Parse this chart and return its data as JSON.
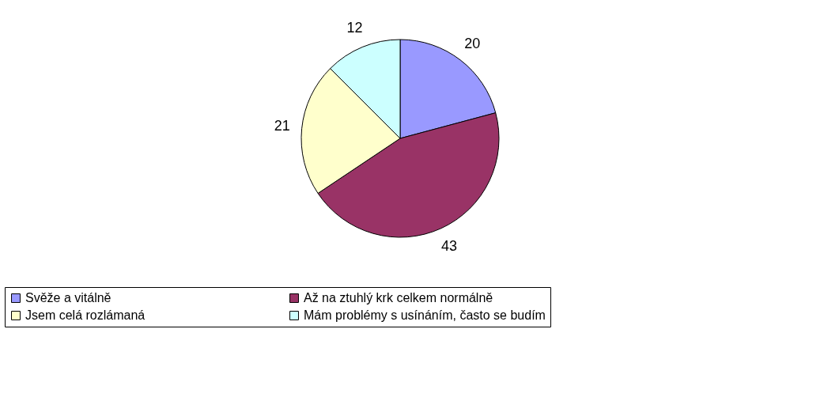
{
  "chart_data": {
    "type": "pie",
    "categories": [
      "Svěže a vitálně",
      "Až na ztuhlý krk celkem normálně",
      "Jsem celá rozlámaná",
      "Mám problémy s usínáním, často se budím"
    ],
    "values": [
      20,
      43,
      21,
      12
    ],
    "colors": [
      "#9999ff",
      "#993366",
      "#ffffcc",
      "#ccffff"
    ],
    "data_labels": true,
    "legend": "bottom"
  }
}
